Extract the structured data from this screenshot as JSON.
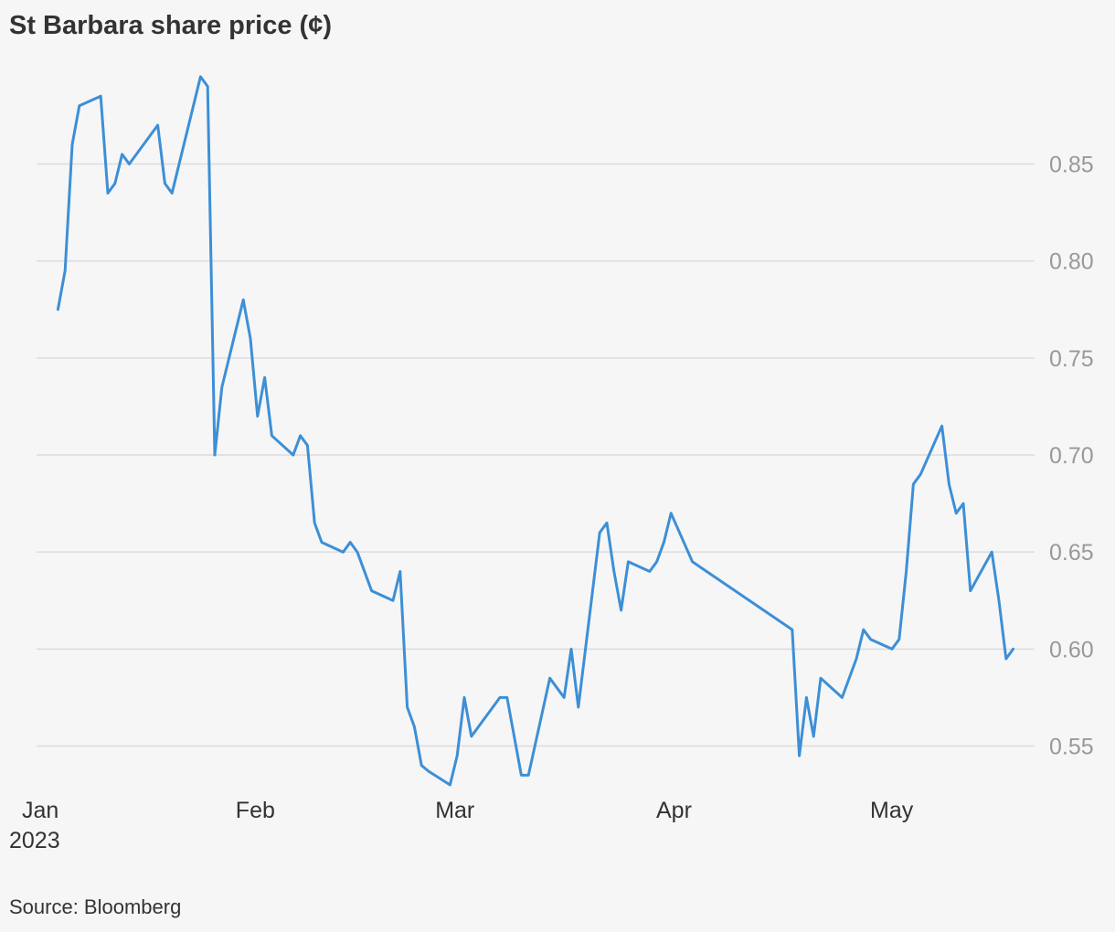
{
  "title": "St Barbara share price (¢)",
  "source": "Source: Bloomberg",
  "colors": {
    "line": "#3d8fd6",
    "grid": "#dcdcdc",
    "ytick": "#999999",
    "text": "#333333",
    "background": "#f6f6f6"
  },
  "chart_data": {
    "type": "line",
    "title": "St Barbara share price (¢)",
    "xlabel": "",
    "ylabel": "",
    "x_start_label": "Jan",
    "x_year_label": "2023",
    "xticks": [
      {
        "label": "Jan",
        "date": "2023-01-01"
      },
      {
        "label": "Feb",
        "date": "2023-02-01"
      },
      {
        "label": "Mar",
        "date": "2023-03-01"
      },
      {
        "label": "Apr",
        "date": "2023-04-01"
      },
      {
        "label": "May",
        "date": "2023-05-01"
      }
    ],
    "yticks": [
      "0.55",
      "0.60",
      "0.65",
      "0.70",
      "0.75",
      "0.80",
      "0.85"
    ],
    "ylim": [
      0.53,
      0.895
    ],
    "grid": true,
    "y_axis_side": "right",
    "series": [
      {
        "x": [
          "2023-01-04",
          "2023-01-05",
          "2023-01-06",
          "2023-01-07",
          "2023-01-10",
          "2023-01-11",
          "2023-01-12",
          "2023-01-13",
          "2023-01-14",
          "2023-01-18",
          "2023-01-19",
          "2023-01-20",
          "2023-01-24",
          "2023-01-25",
          "2023-01-26",
          "2023-01-27",
          "2023-01-30",
          "2023-01-31",
          "2023-02-01",
          "2023-02-02",
          "2023-02-03",
          "2023-02-06",
          "2023-02-07",
          "2023-02-08",
          "2023-02-09",
          "2023-02-10",
          "2023-02-13",
          "2023-02-14",
          "2023-02-15",
          "2023-02-17",
          "2023-02-20",
          "2023-02-21",
          "2023-02-22",
          "2023-02-23",
          "2023-02-24",
          "2023-02-25",
          "2023-02-28",
          "2023-03-01",
          "2023-03-02",
          "2023-03-03",
          "2023-03-07",
          "2023-03-08",
          "2023-03-10",
          "2023-03-11",
          "2023-03-14",
          "2023-03-16",
          "2023-03-17",
          "2023-03-18",
          "2023-03-21",
          "2023-03-22",
          "2023-03-23",
          "2023-03-24",
          "2023-03-25",
          "2023-03-28",
          "2023-03-29",
          "2023-03-30",
          "2023-03-31",
          "2023-04-03",
          "2023-04-17",
          "2023-04-18",
          "2023-04-19",
          "2023-04-20",
          "2023-04-21",
          "2023-04-24",
          "2023-04-26",
          "2023-04-27",
          "2023-04-28",
          "2023-05-01",
          "2023-05-02",
          "2023-05-03",
          "2023-05-04",
          "2023-05-05",
          "2023-05-08",
          "2023-05-09",
          "2023-05-10",
          "2023-05-11",
          "2023-05-12",
          "2023-05-15",
          "2023-05-16",
          "2023-05-17",
          "2023-05-18"
        ],
        "values": [
          0.775,
          0.795,
          0.86,
          0.88,
          0.885,
          0.835,
          0.84,
          0.855,
          0.85,
          0.87,
          0.84,
          0.835,
          0.895,
          0.89,
          0.7,
          0.735,
          0.78,
          0.76,
          0.72,
          0.74,
          0.71,
          0.7,
          0.71,
          0.705,
          0.665,
          0.655,
          0.65,
          0.655,
          0.65,
          0.63,
          0.625,
          0.64,
          0.57,
          0.56,
          0.54,
          0.537,
          0.53,
          0.545,
          0.575,
          0.555,
          0.575,
          0.575,
          0.535,
          0.535,
          0.585,
          0.575,
          0.6,
          0.57,
          0.66,
          0.665,
          0.64,
          0.62,
          0.645,
          0.64,
          0.645,
          0.655,
          0.67,
          0.645,
          0.61,
          0.545,
          0.575,
          0.555,
          0.585,
          0.575,
          0.595,
          0.61,
          0.605,
          0.6,
          0.605,
          0.64,
          0.685,
          0.69,
          0.715,
          0.685,
          0.67,
          0.675,
          0.63,
          0.65,
          0.625,
          0.595,
          0.6
        ]
      }
    ]
  }
}
